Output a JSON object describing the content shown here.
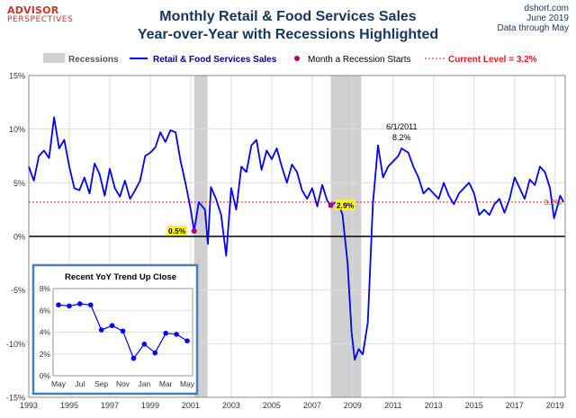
{
  "brand": {
    "line1": "ADVISOR",
    "line2": "PERSPECTIVES"
  },
  "source": {
    "site": "dshort.com",
    "date": "June 2019",
    "through": "Data through May"
  },
  "chart_data": [
    {
      "type": "line",
      "title": "Monthly Retail & Food Services Sales",
      "subtitle": "Year-over-Year with Recessions Highlighted",
      "legend": {
        "recessions": "Recessions",
        "series": "Retail & Food Services Sales",
        "marker": "Month a Recession Starts",
        "current": "Current Level = 3.2%"
      },
      "xlim": [
        1993,
        2019.5
      ],
      "ylim": [
        -15,
        15
      ],
      "y_ticks": [
        15,
        10,
        5,
        0,
        -5,
        -10,
        -15
      ],
      "y_tick_labels": [
        "15%",
        "10%",
        "5%",
        "0%",
        "-5%",
        "-10%",
        "-15%"
      ],
      "x_ticks": [
        1993,
        1995,
        1997,
        1999,
        2001,
        2003,
        2005,
        2007,
        2009,
        2011,
        2013,
        2015,
        2017,
        2019
      ],
      "x_tick_labels": [
        "1993",
        "1995",
        "1997",
        "1999",
        "2001",
        "2003",
        "2005",
        "2007",
        "2009",
        "2011",
        "2013",
        "2015",
        "2017",
        "2019"
      ],
      "recession_periods": [
        [
          2001.17,
          2001.83
        ],
        [
          2007.92,
          2009.42
        ]
      ],
      "current_level": 3.2,
      "current_level_label": "3.2%",
      "recession_start_markers": [
        {
          "x": 2001.17,
          "y": 0.5,
          "label": "0.5%"
        },
        {
          "x": 2007.92,
          "y": 2.9,
          "label": "2.9%"
        }
      ],
      "peak_annotation": {
        "x": 2011.42,
        "y": 8.2,
        "label1": "6/1/2011",
        "label2": "8.2%"
      },
      "grid": true,
      "series": [
        {
          "name": "Retail & Food Services Sales",
          "color": "#0000ff",
          "points": [
            [
              1993.0,
              6.5
            ],
            [
              1993.25,
              5.2
            ],
            [
              1993.5,
              7.5
            ],
            [
              1993.75,
              8.0
            ],
            [
              1994.0,
              7.3
            ],
            [
              1994.25,
              11.1
            ],
            [
              1994.5,
              8.2
            ],
            [
              1994.75,
              9.0
            ],
            [
              1995.0,
              6.5
            ],
            [
              1995.25,
              4.5
            ],
            [
              1995.5,
              4.3
            ],
            [
              1995.75,
              5.5
            ],
            [
              1996.0,
              4.0
            ],
            [
              1996.25,
              6.8
            ],
            [
              1996.5,
              5.8
            ],
            [
              1996.75,
              3.8
            ],
            [
              1997.0,
              6.3
            ],
            [
              1997.25,
              4.5
            ],
            [
              1997.5,
              3.7
            ],
            [
              1997.75,
              5.2
            ],
            [
              1998.0,
              3.5
            ],
            [
              1998.25,
              4.3
            ],
            [
              1998.5,
              5.2
            ],
            [
              1998.75,
              7.5
            ],
            [
              1999.0,
              7.8
            ],
            [
              1999.25,
              8.3
            ],
            [
              1999.5,
              9.7
            ],
            [
              1999.75,
              8.8
            ],
            [
              2000.0,
              9.9
            ],
            [
              2000.25,
              9.7
            ],
            [
              2000.5,
              7.0
            ],
            [
              2000.75,
              4.9
            ],
            [
              2001.0,
              2.5
            ],
            [
              2001.17,
              0.5
            ],
            [
              2001.4,
              3.2
            ],
            [
              2001.7,
              2.5
            ],
            [
              2001.85,
              -0.7
            ],
            [
              2002.0,
              4.6
            ],
            [
              2002.25,
              3.5
            ],
            [
              2002.5,
              2.0
            ],
            [
              2002.75,
              -1.8
            ],
            [
              2003.0,
              4.5
            ],
            [
              2003.25,
              2.5
            ],
            [
              2003.5,
              6.5
            ],
            [
              2003.75,
              6.0
            ],
            [
              2004.0,
              8.5
            ],
            [
              2004.25,
              9.0
            ],
            [
              2004.5,
              6.2
            ],
            [
              2004.75,
              8.0
            ],
            [
              2005.0,
              7.2
            ],
            [
              2005.25,
              8.2
            ],
            [
              2005.5,
              6.5
            ],
            [
              2005.75,
              5.0
            ],
            [
              2006.0,
              6.7
            ],
            [
              2006.25,
              6.0
            ],
            [
              2006.5,
              4.3
            ],
            [
              2006.75,
              3.5
            ],
            [
              2007.0,
              4.5
            ],
            [
              2007.25,
              2.8
            ],
            [
              2007.5,
              4.8
            ],
            [
              2007.75,
              3.3
            ],
            [
              2007.92,
              2.9
            ],
            [
              2008.25,
              3.3
            ],
            [
              2008.5,
              2.0
            ],
            [
              2008.75,
              -2.5
            ],
            [
              2008.95,
              -9.0
            ],
            [
              2009.1,
              -11.5
            ],
            [
              2009.3,
              -10.5
            ],
            [
              2009.5,
              -11.0
            ],
            [
              2009.75,
              -8.0
            ],
            [
              2010.0,
              3.0
            ],
            [
              2010.25,
              8.5
            ],
            [
              2010.5,
              5.5
            ],
            [
              2010.75,
              6.5
            ],
            [
              2011.0,
              7.0
            ],
            [
              2011.25,
              7.5
            ],
            [
              2011.42,
              8.2
            ],
            [
              2011.75,
              7.8
            ],
            [
              2012.0,
              6.5
            ],
            [
              2012.25,
              5.5
            ],
            [
              2012.5,
              4.0
            ],
            [
              2012.75,
              4.5
            ],
            [
              2013.0,
              4.0
            ],
            [
              2013.25,
              3.5
            ],
            [
              2013.5,
              5.0
            ],
            [
              2013.75,
              3.8
            ],
            [
              2014.0,
              3.0
            ],
            [
              2014.25,
              4.0
            ],
            [
              2014.5,
              4.5
            ],
            [
              2014.75,
              5.0
            ],
            [
              2015.0,
              4.0
            ],
            [
              2015.25,
              2.0
            ],
            [
              2015.5,
              2.5
            ],
            [
              2015.75,
              2.0
            ],
            [
              2016.0,
              3.0
            ],
            [
              2016.25,
              3.5
            ],
            [
              2016.5,
              2.2
            ],
            [
              2016.75,
              3.5
            ],
            [
              2017.0,
              5.5
            ],
            [
              2017.25,
              4.5
            ],
            [
              2017.5,
              3.5
            ],
            [
              2017.75,
              5.3
            ],
            [
              2018.0,
              4.8
            ],
            [
              2018.25,
              6.5
            ],
            [
              2018.5,
              6.0
            ],
            [
              2018.75,
              4.5
            ],
            [
              2018.95,
              1.7
            ],
            [
              2019.1,
              2.7
            ],
            [
              2019.25,
              3.8
            ],
            [
              2019.42,
              3.2
            ]
          ]
        }
      ]
    },
    {
      "type": "line",
      "title": "Recent  YoY Trend Up Close",
      "ylim": [
        0,
        8
      ],
      "y_ticks": [
        0,
        2,
        4,
        6,
        8
      ],
      "y_tick_labels": [
        "0%",
        "2%",
        "4%",
        "6%",
        "8%"
      ],
      "categories": [
        "May",
        "Jun",
        "Jul",
        "Aug",
        "Sep",
        "Oct",
        "Nov",
        "Dec",
        "Jan",
        "Feb",
        "Mar",
        "Apr",
        "May"
      ],
      "x_tick_labels": [
        "May",
        "",
        "Jul",
        "",
        "Sep",
        "",
        "Nov",
        "",
        "Jan",
        "",
        "Mar",
        "",
        "May"
      ],
      "grid": true,
      "series": [
        {
          "name": "",
          "color": "#0000ff",
          "values": [
            6.5,
            6.4,
            6.6,
            6.5,
            4.2,
            4.6,
            4.1,
            1.6,
            2.9,
            2.1,
            3.9,
            3.8,
            3.2
          ]
        }
      ]
    }
  ]
}
